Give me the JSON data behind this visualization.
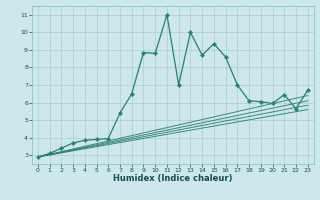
{
  "xlabel": "Humidex (Indice chaleur)",
  "ylabel": "",
  "bg_color": "#cce8ec",
  "grid_color": "#aacccc",
  "line_color": "#2e7d72",
  "xlim": [
    -0.5,
    23.5
  ],
  "ylim": [
    2.5,
    11.5
  ],
  "xticks": [
    0,
    1,
    2,
    3,
    4,
    5,
    6,
    7,
    8,
    9,
    10,
    11,
    12,
    13,
    14,
    15,
    16,
    17,
    18,
    19,
    20,
    21,
    22,
    23
  ],
  "yticks": [
    3,
    4,
    5,
    6,
    7,
    8,
    9,
    10,
    11
  ],
  "main_x": [
    0,
    1,
    2,
    3,
    4,
    5,
    6,
    7,
    8,
    9,
    10,
    11,
    12,
    13,
    14,
    15,
    16,
    17,
    18,
    19,
    20,
    21,
    22,
    23
  ],
  "main_y": [
    2.9,
    3.1,
    3.4,
    3.7,
    3.85,
    3.9,
    3.95,
    5.4,
    6.5,
    8.85,
    8.8,
    11.0,
    7.0,
    10.0,
    8.7,
    9.35,
    8.6,
    7.0,
    6.1,
    6.05,
    5.95,
    6.45,
    5.65,
    6.7
  ],
  "ref_lines": [
    {
      "x": [
        0,
        23
      ],
      "y": [
        2.9,
        6.4
      ]
    },
    {
      "x": [
        0,
        23
      ],
      "y": [
        2.9,
        6.1
      ]
    },
    {
      "x": [
        0,
        23
      ],
      "y": [
        2.9,
        5.85
      ]
    },
    {
      "x": [
        0,
        23
      ],
      "y": [
        2.9,
        5.6
      ]
    }
  ],
  "tick_fontsize": 4.5,
  "xlabel_fontsize": 6.0
}
